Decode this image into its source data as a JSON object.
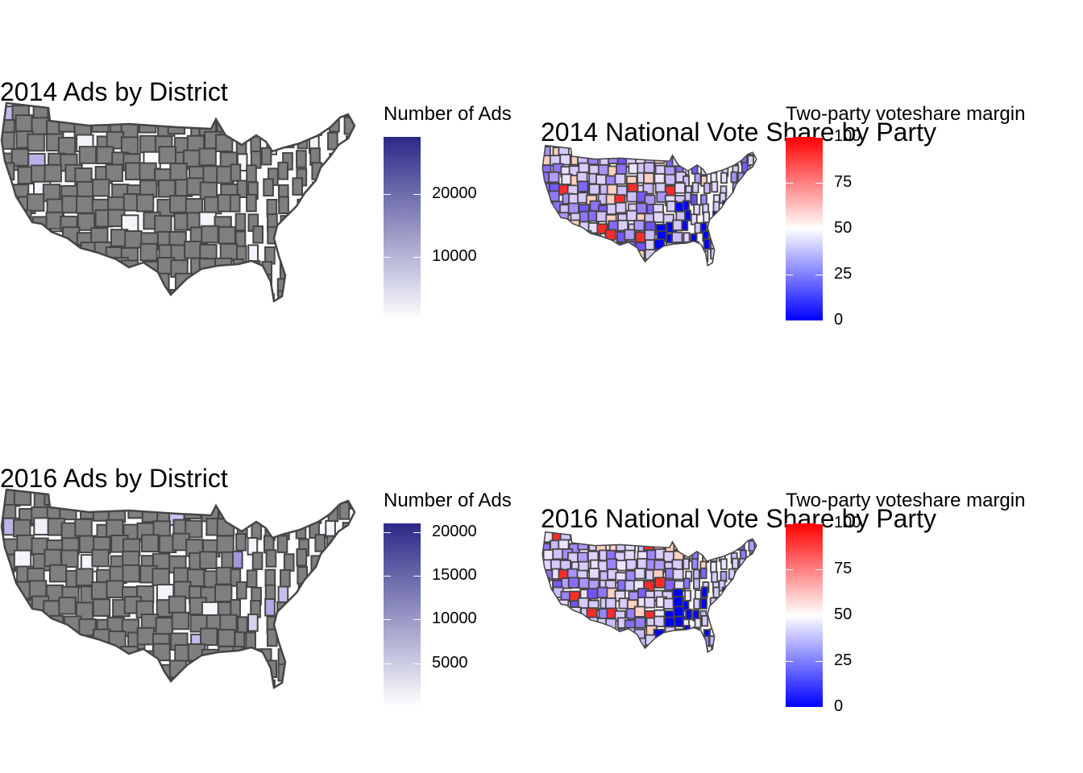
{
  "panels": [
    {
      "id": "ads2014",
      "title": "2014 Ads by District",
      "legend_title": "Number of Ads",
      "scale": "purples",
      "low_color": "#ffffff",
      "high_color": "#2c2a87",
      "range": [
        0,
        29000
      ],
      "ticks": [
        "10000",
        "20000"
      ],
      "tick_values": [
        10000,
        20000
      ],
      "base_fill": "#7f7f7f",
      "border": "#454545"
    },
    {
      "id": "vote2014",
      "title": "2014 National Vote Share by Party",
      "legend_title": "Two-party voteshare margin",
      "scale": "diverging",
      "low_color": "#0000ff",
      "mid_color": "#ffffff",
      "high_color": "#ff0000",
      "range": [
        0,
        100
      ],
      "ticks": [
        "0",
        "25",
        "50",
        "75",
        "100"
      ],
      "tick_values": [
        0,
        25,
        50,
        75,
        100
      ],
      "base_fill": "#d8ccff",
      "border": "#454545"
    },
    {
      "id": "ads2016",
      "title": "2016 Ads by District",
      "legend_title": "Number of Ads",
      "scale": "purples",
      "low_color": "#ffffff",
      "high_color": "#2c2a87",
      "range": [
        0,
        21000
      ],
      "ticks": [
        "5000",
        "10000",
        "15000",
        "20000"
      ],
      "tick_values": [
        5000,
        10000,
        15000,
        20000
      ],
      "base_fill": "#7f7f7f",
      "border": "#454545"
    },
    {
      "id": "vote2016",
      "title": "2016 National Vote Share by Party",
      "legend_title": "Two-party voteshare margin",
      "scale": "diverging",
      "low_color": "#0000ff",
      "mid_color": "#ffffff",
      "high_color": "#ff0000",
      "range": [
        0,
        100
      ],
      "ticks": [
        "0",
        "25",
        "50",
        "75",
        "100"
      ],
      "tick_values": [
        0,
        25,
        50,
        75,
        100
      ],
      "base_fill": "#d8ccff",
      "border": "#454545"
    }
  ]
}
